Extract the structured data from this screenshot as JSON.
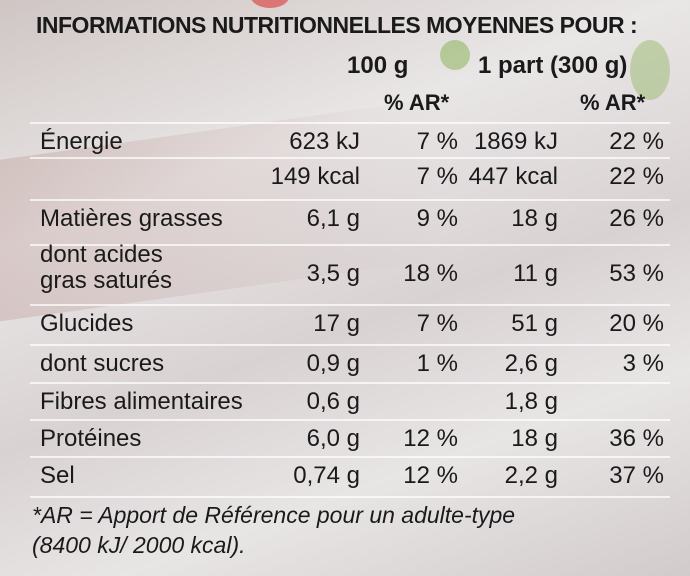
{
  "header": "INFORMATIONS NUTRITIONNELLES MOYENNES POUR :",
  "col_100": "100 g",
  "col_part": "1 part (300 g)",
  "ar_label_1": "% AR*",
  "ar_label_2": "% AR*",
  "rows": [
    {
      "label": "Énergie",
      "v100": "623 kJ",
      "ar100": "7 %",
      "vpart": "1869 kJ",
      "arpart": "22 %"
    },
    {
      "label": "",
      "v100": "149 kcal",
      "ar100": "7 %",
      "vpart": "447 kcal",
      "arpart": "22 %"
    },
    {
      "label": "Matières grasses",
      "v100": "6,1 g",
      "ar100": "9 %",
      "vpart": "18 g",
      "arpart": "26 %"
    },
    {
      "label": "dont acides\ngras saturés",
      "v100": "3,5 g",
      "ar100": "18 %",
      "vpart": "11 g",
      "arpart": "53 %"
    },
    {
      "label": "Glucides",
      "v100": "17 g",
      "ar100": "7 %",
      "vpart": "51 g",
      "arpart": "20 %"
    },
    {
      "label": "dont sucres",
      "v100": "0,9 g",
      "ar100": "1 %",
      "vpart": "2,6 g",
      "arpart": "3 %"
    },
    {
      "label": "Fibres alimentaires",
      "v100": "0,6 g",
      "ar100": "",
      "vpart": "1,8 g",
      "arpart": ""
    },
    {
      "label": "Protéines",
      "v100": "6,0 g",
      "ar100": "12 %",
      "vpart": "18 g",
      "arpart": "36 %"
    },
    {
      "label": "Sel",
      "v100": "0,74 g",
      "ar100": "12 %",
      "vpart": "2,2 g",
      "arpart": "37 %"
    }
  ],
  "footnote_1": "*AR = Apport de Référence pour un adulte-type",
  "footnote_2": "(8400 kJ/ 2000 kcal)."
}
